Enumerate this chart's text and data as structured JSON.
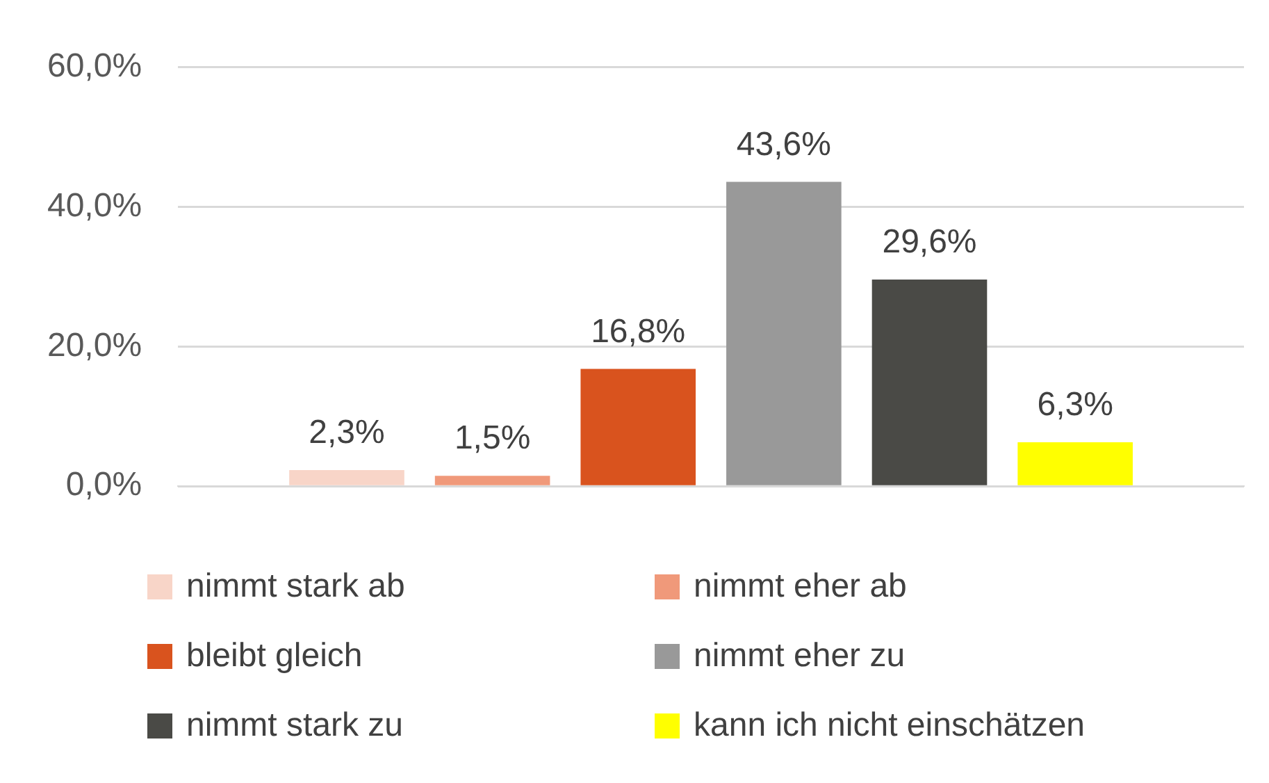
{
  "chart_data": {
    "type": "bar",
    "categories": [
      null
    ],
    "series": [
      {
        "name": "nimmt stark ab",
        "color": "#f8d5c8",
        "values": [
          2.3
        ],
        "value_labels": [
          "2,3%"
        ]
      },
      {
        "name": "nimmt eher ab",
        "color": "#f0997a",
        "values": [
          1.5
        ],
        "value_labels": [
          "1,5%"
        ]
      },
      {
        "name": "bleibt gleich",
        "color": "#d9531e",
        "values": [
          16.8
        ],
        "value_labels": [
          "16,8%"
        ]
      },
      {
        "name": "nimmt eher zu",
        "color": "#999999",
        "values": [
          43.6
        ],
        "value_labels": [
          "43,6%"
        ]
      },
      {
        "name": "nimmt stark zu",
        "color": "#4a4a46",
        "values": [
          29.6
        ],
        "value_labels": [
          "29,6%"
        ]
      },
      {
        "name": "kann ich nicht einschätzen",
        "color": "#ffff00",
        "values": [
          6.3
        ],
        "value_labels": [
          "6,3%"
        ]
      }
    ],
    "ylim": [
      0,
      60
    ],
    "yticks": [
      {
        "value": 0,
        "label": "0,0%"
      },
      {
        "value": 20,
        "label": "20,0%"
      },
      {
        "value": 40,
        "label": "40,0%"
      },
      {
        "value": 60,
        "label": "60,0%"
      }
    ],
    "grid": "y",
    "legend": "bottom"
  }
}
